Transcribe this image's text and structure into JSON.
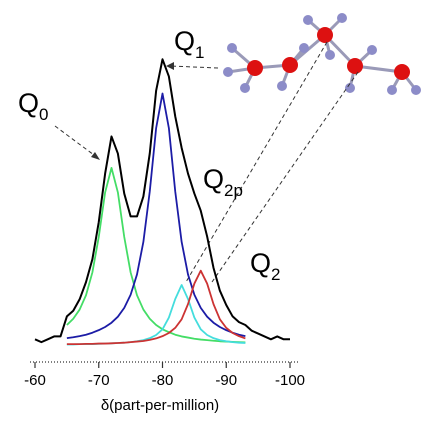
{
  "chart_data": {
    "type": "line",
    "x_label": "δ(part-per-million)",
    "xlim": [
      -60,
      -100
    ],
    "xticks": [
      -60,
      -70,
      -80,
      -90,
      -100
    ],
    "ylim": [
      0,
      105
    ],
    "x": [
      -60,
      -61,
      -62,
      -63,
      -64,
      -65,
      -66,
      -67,
      -68,
      -69,
      -70,
      -71,
      -72,
      -73,
      -74,
      -75,
      -76,
      -77,
      -78,
      -79,
      -80,
      -81,
      -82,
      -83,
      -84,
      -85,
      -86,
      -87,
      -88,
      -89,
      -90,
      -91,
      -92,
      -93,
      -94,
      -95,
      -96,
      -97,
      -98,
      -99,
      -100
    ],
    "series": [
      {
        "color": "#000000",
        "values": [
          2,
          1,
          2,
          3,
          3,
          10,
          12,
          16,
          22,
          30,
          43,
          60,
          73,
          67,
          53,
          45,
          45,
          52,
          67,
          89,
          100,
          94,
          80,
          69,
          60,
          53,
          47,
          38,
          27,
          19,
          14,
          10,
          8,
          7,
          5,
          4,
          3,
          2,
          3,
          2,
          2
        ]
      },
      {
        "color": "#44dd66",
        "values": [
          null,
          null,
          null,
          null,
          null,
          7.0,
          9.2,
          12.4,
          17.4,
          25.4,
          37.8,
          53.4,
          62,
          53.4,
          37.8,
          25.4,
          17.4,
          12.4,
          9.2,
          7.0,
          5.5,
          4.5,
          3.6,
          3.0,
          2.6,
          2.2,
          1.9,
          1.7,
          1.5,
          1.3,
          1.2,
          1.1,
          1.0,
          0.9,
          null,
          null,
          null,
          null,
          null,
          null,
          null
        ]
      },
      {
        "color": "#1c1ca6",
        "values": [
          null,
          null,
          null,
          null,
          null,
          2.4,
          2.7,
          3.1,
          3.6,
          4.3,
          5.2,
          6.3,
          7.8,
          9.9,
          13.0,
          17.6,
          24.7,
          36.1,
          53.7,
          75.9,
          88,
          75.9,
          53.7,
          36.1,
          24.7,
          17.6,
          13.0,
          9.9,
          7.8,
          6.3,
          5.2,
          4.3,
          3.6,
          3.1,
          null,
          null,
          null,
          null,
          null,
          null,
          null
        ]
      },
      {
        "color": "#44dddd",
        "values": [
          null,
          null,
          null,
          null,
          null,
          0.2,
          0.2,
          0.3,
          0.3,
          0.3,
          0.4,
          0.5,
          0.6,
          0.7,
          0.8,
          1.0,
          1.3,
          1.7,
          2.4,
          3.5,
          5.5,
          9.6,
          16.1,
          21,
          16.1,
          9.6,
          5.5,
          3.5,
          2.4,
          1.7,
          1.3,
          1.0,
          0.8,
          0.7,
          null,
          null,
          null,
          null,
          null,
          null,
          null
        ]
      },
      {
        "color": "#cc3333",
        "values": [
          null,
          null,
          null,
          null,
          null,
          0.3,
          0.3,
          0.3,
          0.4,
          0.4,
          0.5,
          0.5,
          0.6,
          0.7,
          0.8,
          1.0,
          1.2,
          1.4,
          1.8,
          2.3,
          3.1,
          4.2,
          6.0,
          9.0,
          14.3,
          21.5,
          26,
          21.5,
          14.3,
          9.0,
          6.0,
          4.2,
          3.1,
          2.3,
          null,
          null,
          null,
          null,
          null,
          null,
          null
        ]
      }
    ],
    "annotations": [
      {
        "label": "Q",
        "sub": "0"
      },
      {
        "label": "Q",
        "sub": "1"
      },
      {
        "label": "Q",
        "sub": "2p"
      },
      {
        "label": "Q",
        "sub": "2"
      }
    ]
  }
}
